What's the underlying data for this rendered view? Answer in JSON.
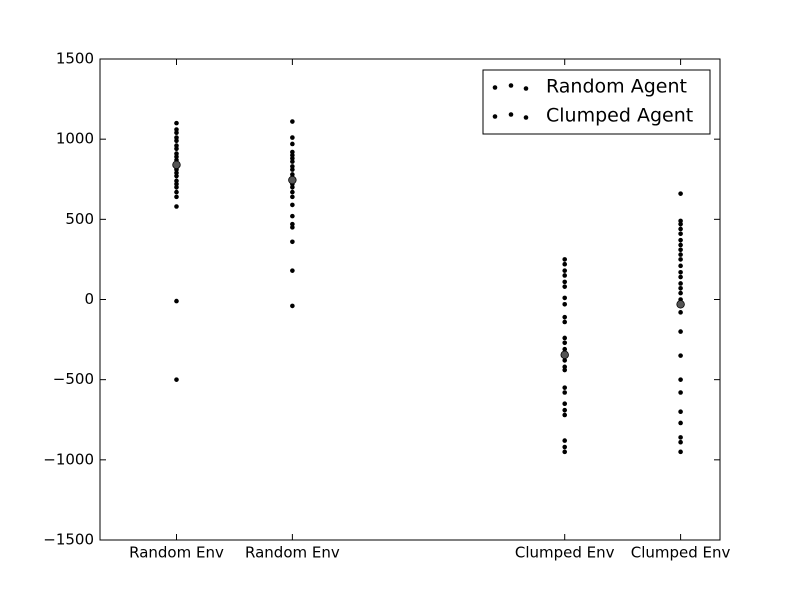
{
  "chart_data": {
    "type": "scatter",
    "xlim": [
      0.34,
      5.69
    ],
    "ylim": [
      -1500,
      1500
    ],
    "xticks": [
      {
        "value": 1,
        "label": "Random Env"
      },
      {
        "value": 2,
        "label": "Random Env"
      },
      {
        "value": 4.35,
        "label": "Clumped Env"
      },
      {
        "value": 5.35,
        "label": "Clumped Env"
      }
    ],
    "yticks": [
      {
        "value": -1500,
        "label": "−1500"
      },
      {
        "value": -1000,
        "label": "−1000"
      },
      {
        "value": -500,
        "label": "−500"
      },
      0,
      500,
      1000,
      1500
    ],
    "legend": "upper right",
    "series": [
      {
        "name": "Random Agent",
        "color": "#000000",
        "x": [
          1,
          1,
          1,
          1,
          1,
          1,
          1,
          1,
          1,
          1,
          1,
          1,
          1,
          1,
          1,
          1,
          1,
          1,
          1,
          1,
          1,
          1,
          1,
          1,
          4.35,
          4.35,
          4.35,
          4.35,
          4.35,
          4.35,
          4.35,
          4.35,
          4.35,
          4.35,
          4.35,
          4.35,
          4.35,
          4.35,
          4.35,
          4.35,
          4.35,
          4.35,
          4.35,
          4.35,
          4.35,
          4.35,
          4.35,
          4.35,
          4.35
        ],
        "values": [
          1100,
          1060,
          1040,
          1010,
          990,
          960,
          940,
          910,
          890,
          870,
          850,
          830,
          820,
          810,
          790,
          770,
          740,
          720,
          700,
          670,
          640,
          580,
          -10,
          -500,
          250,
          220,
          180,
          150,
          110,
          80,
          10,
          -30,
          -110,
          -140,
          -240,
          -270,
          -310,
          -350,
          -380,
          -420,
          -440,
          -550,
          -580,
          -650,
          -690,
          -720,
          -880,
          -920,
          -950
        ]
      },
      {
        "name": "Clumped Agent",
        "color": "#000000",
        "x": [
          2,
          2,
          2,
          2,
          2,
          2,
          2,
          2,
          2,
          2,
          2,
          2,
          2,
          2,
          2,
          2,
          2,
          2,
          2,
          2,
          2,
          2,
          2,
          5.35,
          5.35,
          5.35,
          5.35,
          5.35,
          5.35,
          5.35,
          5.35,
          5.35,
          5.35,
          5.35,
          5.35,
          5.35,
          5.35,
          5.35,
          5.35,
          5.35,
          5.35,
          5.35,
          5.35,
          5.35,
          5.35,
          5.35,
          5.35,
          5.35,
          5.35,
          5.35,
          5.35
        ],
        "values": [
          1110,
          1010,
          970,
          920,
          900,
          880,
          860,
          830,
          810,
          780,
          760,
          740,
          720,
          700,
          670,
          640,
          590,
          520,
          470,
          450,
          360,
          180,
          -40,
          660,
          490,
          470,
          440,
          410,
          370,
          340,
          310,
          280,
          250,
          210,
          170,
          140,
          100,
          70,
          40,
          0,
          -40,
          -80,
          -200,
          -350,
          -500,
          -580,
          -700,
          -770,
          -860,
          -890,
          -950
        ]
      }
    ],
    "means": {
      "color": "#555555",
      "x": [
        1,
        2,
        4.35,
        5.35
      ],
      "values": [
        840,
        745,
        -345,
        -30
      ]
    }
  }
}
